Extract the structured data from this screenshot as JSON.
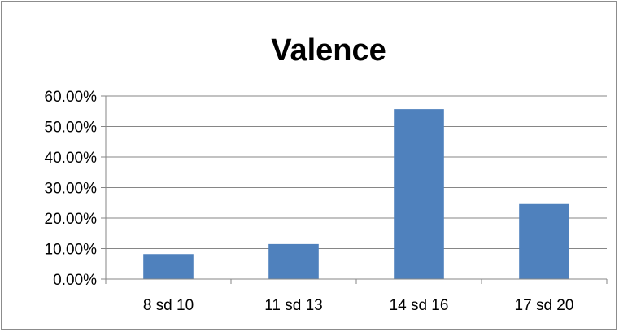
{
  "chart_data": {
    "type": "bar",
    "title": "Valence",
    "xlabel": "",
    "ylabel": "",
    "categories": [
      "8 sd 10",
      "11 sd 13",
      "14 sd 16",
      "17 sd 20"
    ],
    "values": [
      8.2,
      11.5,
      55.7,
      24.6
    ],
    "ylim": [
      0,
      60
    ],
    "y_ticks": [
      0,
      10,
      20,
      30,
      40,
      50,
      60
    ],
    "y_tick_labels": [
      "0.00%",
      "10.00%",
      "20.00%",
      "30.00%",
      "40.00%",
      "50.00%",
      "60.00%"
    ],
    "grid": true,
    "legend": "none",
    "bar_color": "#4f81bd",
    "grid_color": "#868686"
  }
}
